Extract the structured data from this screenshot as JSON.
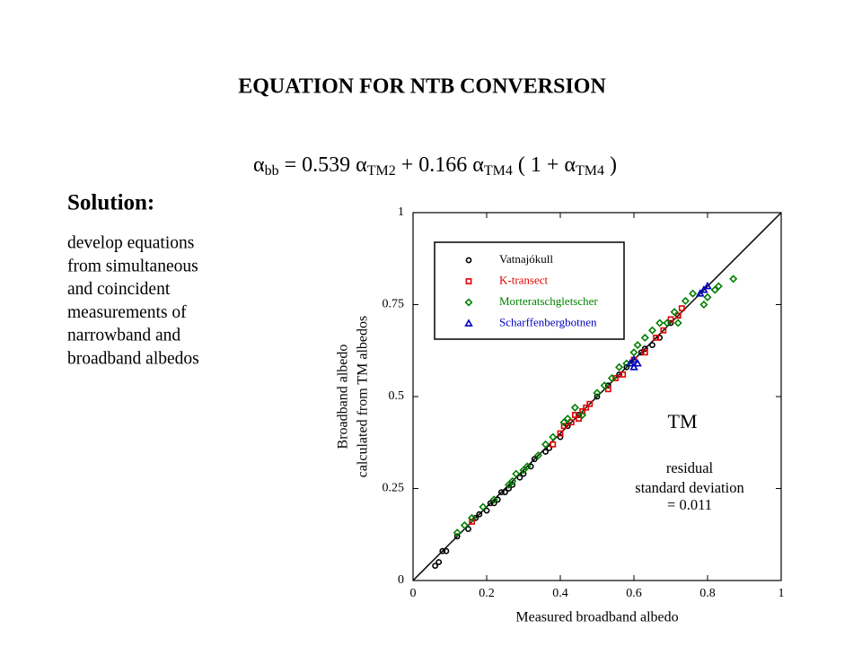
{
  "title": "EQUATION FOR NTB CONVERSION",
  "equation": [
    {
      "text": "α"
    },
    {
      "text": "bb",
      "sub": true
    },
    {
      "text": " = 0.539 "
    },
    {
      "text": "α"
    },
    {
      "text": "TM2",
      "sub": true
    },
    {
      "text": " + 0.166 "
    },
    {
      "text": "α"
    },
    {
      "text": "TM4",
      "sub": true
    },
    {
      "text": " ( 1 + "
    },
    {
      "text": "α"
    },
    {
      "text": "TM4",
      "sub": true
    },
    {
      "text": " )"
    }
  ],
  "solution_heading": "Solution:",
  "solution_lines": [
    "develop equations",
    "from simultaneous",
    "and coincident",
    "measurements of",
    "narrowband and",
    "broadband albedos"
  ],
  "chart_data": {
    "type": "scatter",
    "xlabel": "Measured broadband albedo",
    "ylabel": [
      "Broadband albedo",
      "calculated from TM albedos"
    ],
    "xlim": [
      0,
      1
    ],
    "ylim": [
      0,
      1
    ],
    "xticks": [
      0,
      0.2,
      0.4,
      0.6,
      0.8,
      1
    ],
    "yticks": [
      0,
      0.25,
      0.5,
      0.75,
      1
    ],
    "annotations": [
      "TM",
      "residual",
      "standard deviation",
      "= 0.011"
    ],
    "series": [
      {
        "name": "Vatnajókull",
        "color": "#000000",
        "marker": "circle",
        "x": [
          0.06,
          0.07,
          0.08,
          0.09,
          0.12,
          0.15,
          0.17,
          0.18,
          0.2,
          0.21,
          0.22,
          0.23,
          0.24,
          0.25,
          0.26,
          0.27,
          0.29,
          0.3,
          0.32,
          0.33,
          0.36,
          0.37,
          0.4,
          0.42,
          0.45,
          0.5,
          0.53,
          0.56,
          0.58,
          0.62,
          0.63,
          0.65,
          0.67,
          0.7,
          0.72
        ],
        "y": [
          0.04,
          0.05,
          0.08,
          0.08,
          0.12,
          0.14,
          0.17,
          0.18,
          0.19,
          0.21,
          0.21,
          0.22,
          0.24,
          0.24,
          0.25,
          0.26,
          0.28,
          0.29,
          0.31,
          0.33,
          0.35,
          0.36,
          0.39,
          0.42,
          0.45,
          0.5,
          0.53,
          0.56,
          0.58,
          0.62,
          0.63,
          0.64,
          0.66,
          0.7,
          0.72
        ]
      },
      {
        "name": "K-transect",
        "color": "#e00000",
        "marker": "square",
        "x": [
          0.16,
          0.38,
          0.4,
          0.41,
          0.43,
          0.44,
          0.45,
          0.46,
          0.47,
          0.48,
          0.53,
          0.55,
          0.57,
          0.6,
          0.63,
          0.66,
          0.68,
          0.7,
          0.72,
          0.73
        ],
        "y": [
          0.16,
          0.37,
          0.4,
          0.42,
          0.43,
          0.45,
          0.44,
          0.46,
          0.47,
          0.48,
          0.52,
          0.55,
          0.56,
          0.6,
          0.62,
          0.66,
          0.68,
          0.71,
          0.72,
          0.74
        ]
      },
      {
        "name": "Morteratschgletscher",
        "color": "#008000",
        "marker": "diamond",
        "x": [
          0.12,
          0.14,
          0.16,
          0.19,
          0.22,
          0.26,
          0.27,
          0.28,
          0.3,
          0.31,
          0.34,
          0.36,
          0.38,
          0.41,
          0.42,
          0.44,
          0.46,
          0.5,
          0.52,
          0.54,
          0.56,
          0.58,
          0.6,
          0.61,
          0.63,
          0.65,
          0.67,
          0.69,
          0.71,
          0.72,
          0.74,
          0.76,
          0.79,
          0.8,
          0.82,
          0.83,
          0.87
        ],
        "y": [
          0.13,
          0.15,
          0.17,
          0.2,
          0.22,
          0.26,
          0.27,
          0.29,
          0.3,
          0.31,
          0.34,
          0.37,
          0.39,
          0.43,
          0.44,
          0.47,
          0.45,
          0.51,
          0.53,
          0.55,
          0.58,
          0.59,
          0.62,
          0.64,
          0.66,
          0.68,
          0.7,
          0.7,
          0.73,
          0.7,
          0.76,
          0.78,
          0.75,
          0.77,
          0.79,
          0.8,
          0.82
        ]
      },
      {
        "name": "Scharffenbergbotnen",
        "color": "#0000c0",
        "marker": "triangle",
        "x": [
          0.59,
          0.6,
          0.6,
          0.61,
          0.78,
          0.79,
          0.8
        ],
        "y": [
          0.59,
          0.6,
          0.58,
          0.59,
          0.78,
          0.79,
          0.8
        ]
      }
    ]
  }
}
